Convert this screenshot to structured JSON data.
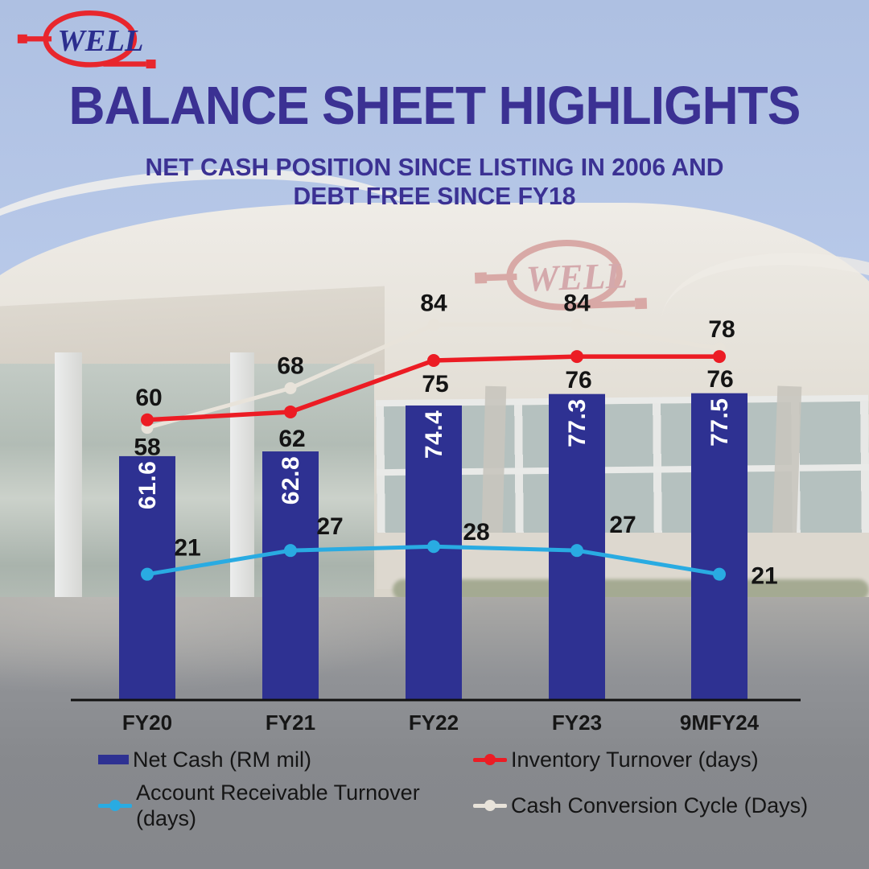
{
  "logo": {
    "text": "WELL"
  },
  "background": {
    "sign_text": "WELL"
  },
  "header": {
    "title": "BALANCE SHEET HIGHLIGHTS",
    "subtitle": "NET CASH POSITION SINCE LISTING IN 2006 AND DEBT FREE SINCE FY18"
  },
  "chart_data": {
    "type": "combo-bar-line",
    "title": "Balance Sheet Highlights",
    "categories": [
      "FY20",
      "FY21",
      "FY22",
      "FY23",
      "9MFY24"
    ],
    "bar_series": {
      "name": "Net Cash (RM mil)",
      "color": "#2e3192",
      "values": [
        61.6,
        62.8,
        74.4,
        77.3,
        77.5
      ],
      "value_labels": [
        "61.6",
        "62.8",
        "74.4",
        "77.3",
        "77.5"
      ]
    },
    "line_series": [
      {
        "name": "Cash Conversion Cycle (Days)",
        "color": "#e8e3da",
        "values": [
          58,
          68,
          84,
          84,
          78
        ]
      },
      {
        "name": "Inventory Turnover (days)",
        "color": "#ec1c24",
        "values": [
          60,
          62,
          75,
          76,
          76
        ]
      },
      {
        "name": "Account Receivable Turnover (days)",
        "color": "#29abe2",
        "values": [
          21,
          27,
          28,
          27,
          21
        ]
      }
    ],
    "value_axis": "hidden",
    "gridlines": false,
    "legend_position": "bottom",
    "axis_color": "#111111"
  },
  "legend": {
    "items": [
      {
        "label": "Net Cash (RM mil)",
        "marker": "bar",
        "color": "#2e3192"
      },
      {
        "label": "Inventory Turnover (days)",
        "marker": "line",
        "color": "#ec1c24"
      },
      {
        "label": "Account Receivable Turnover (days)",
        "marker": "line",
        "color": "#29abe2"
      },
      {
        "label": "Cash Conversion Cycle (Days)",
        "marker": "line",
        "color": "#e8e3da"
      }
    ]
  }
}
